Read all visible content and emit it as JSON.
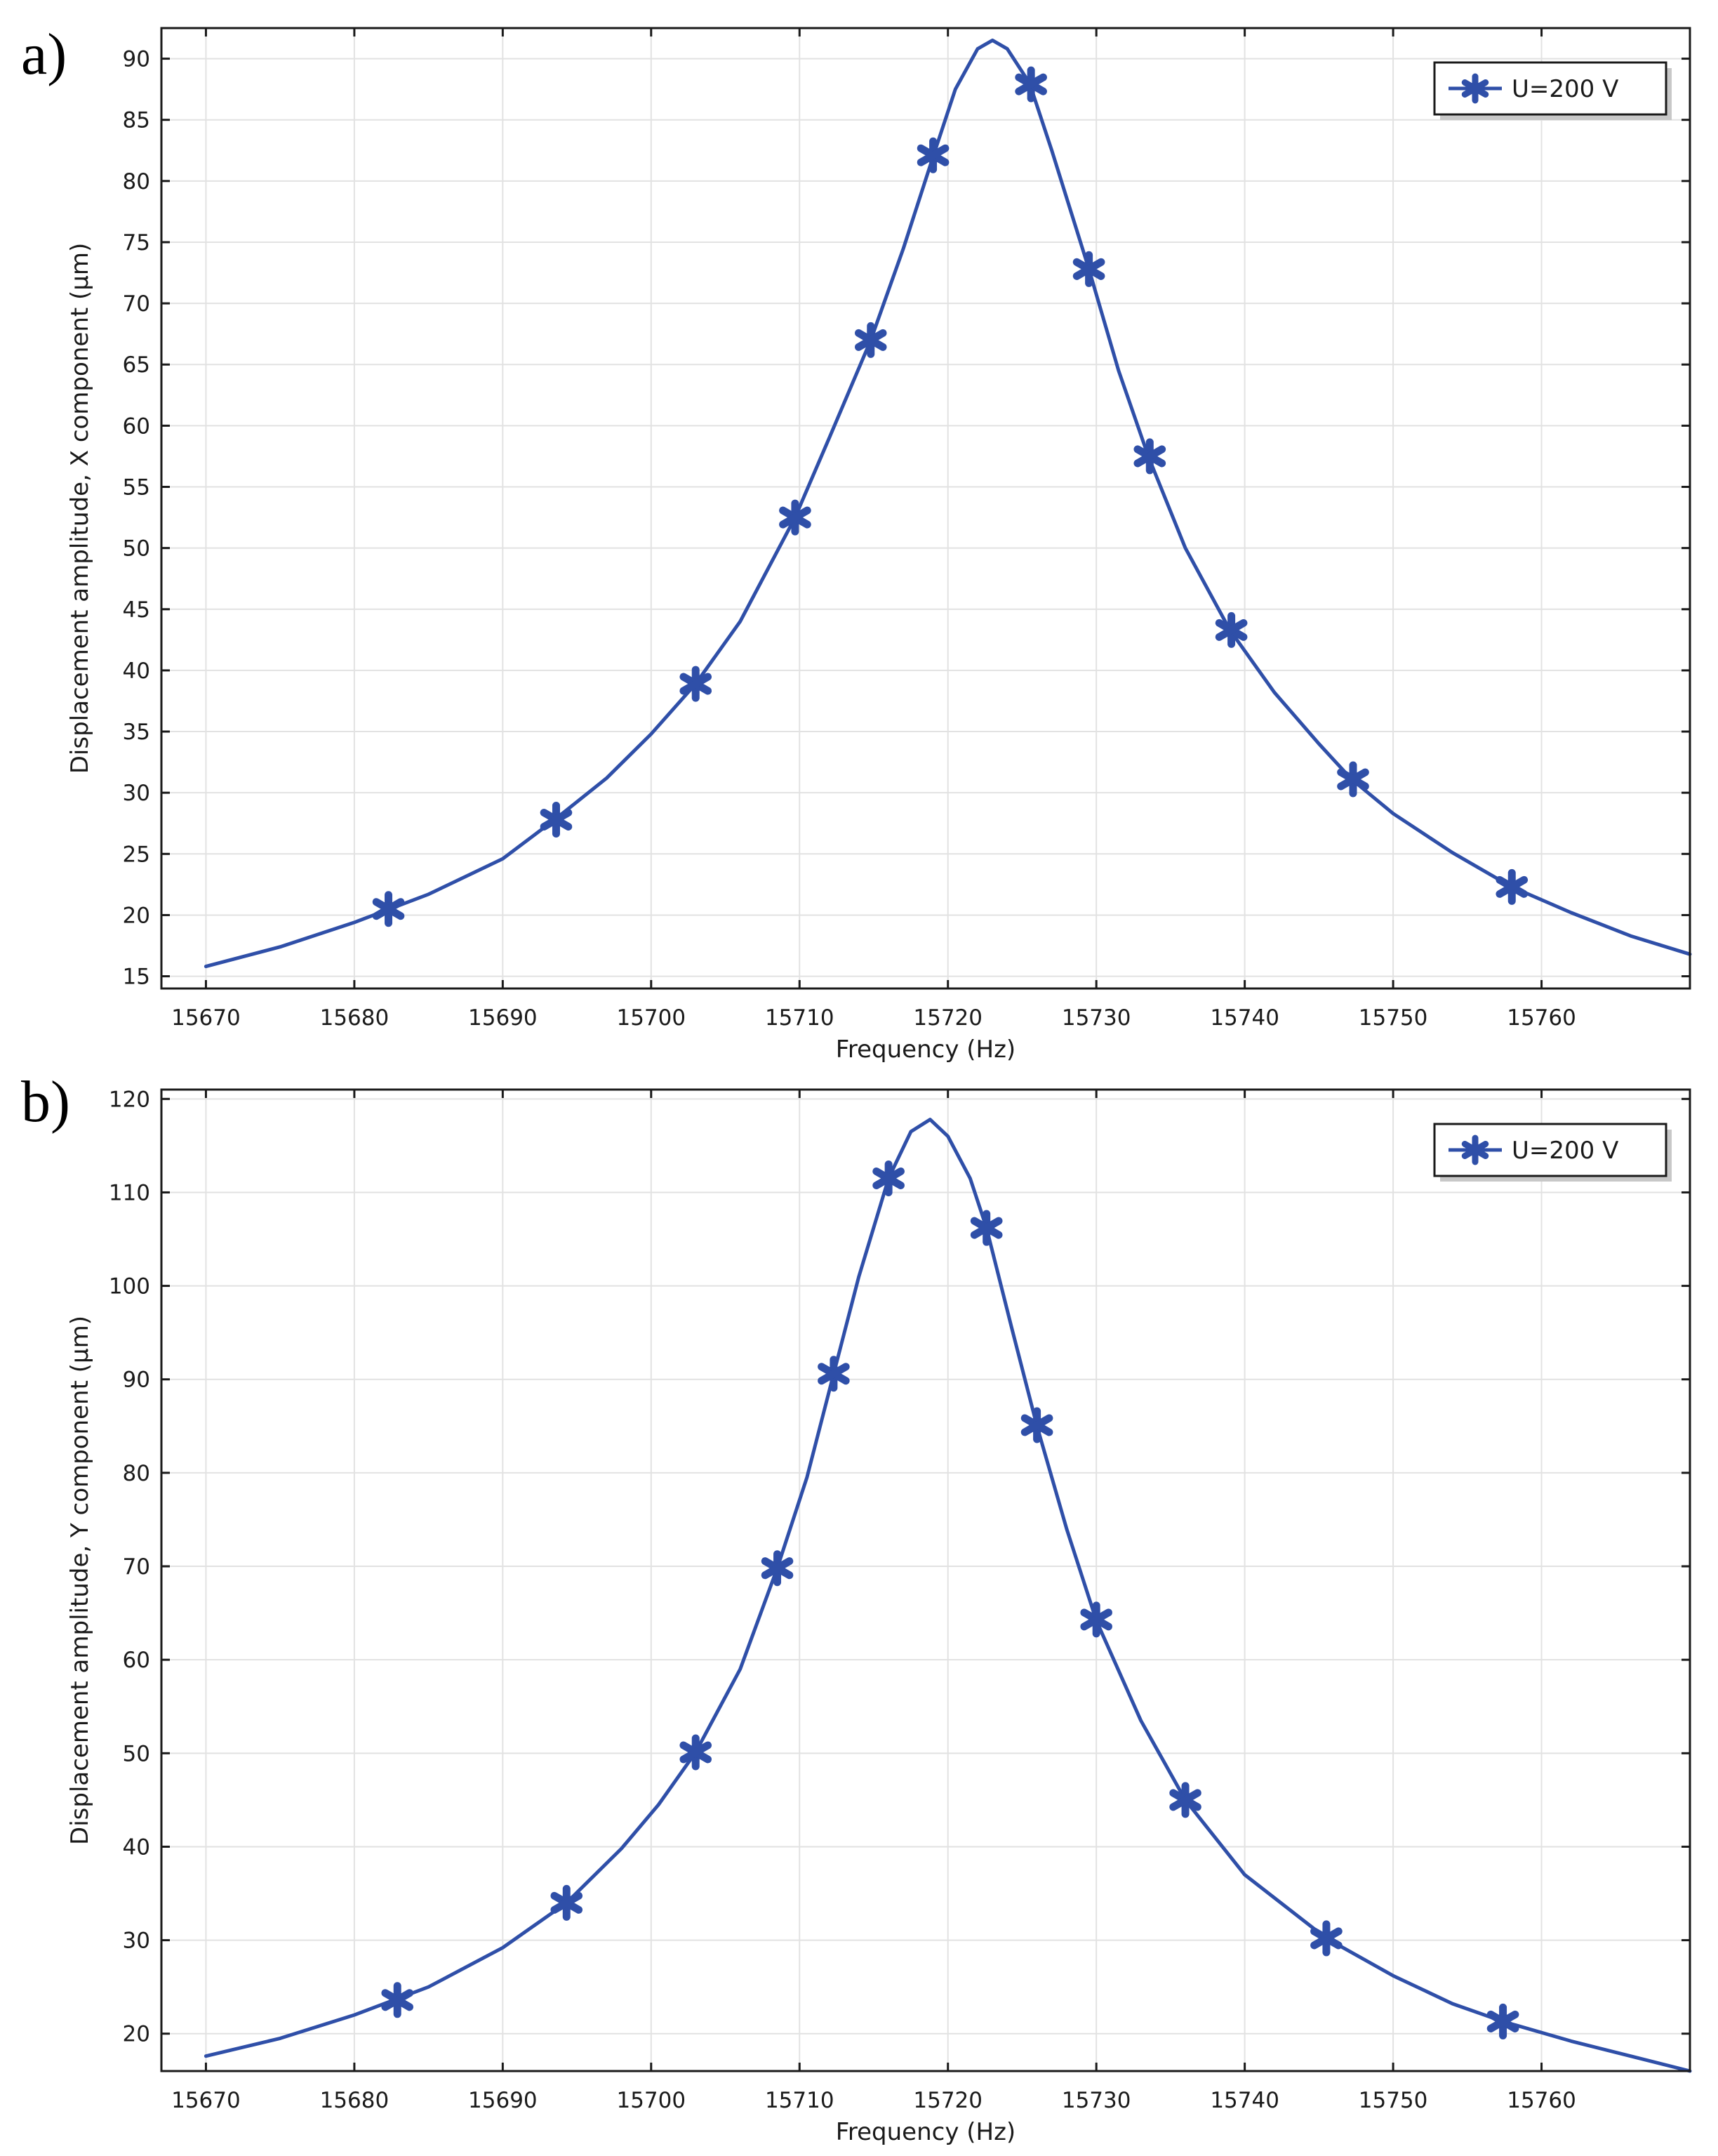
{
  "colors": {
    "series": "#2f4fa8",
    "grid": "#e2e2e2",
    "axis": "#1a1a1a",
    "legend_shadow": "#c8c8c8"
  },
  "chart_data": [
    {
      "panel_label": "a)",
      "type": "line",
      "title": "",
      "xlabel": "Frequency (Hz)",
      "ylabel": "Displacement amplitude, X component (µm)",
      "xlim": [
        15667,
        15770
      ],
      "ylim": [
        14,
        92.5
      ],
      "grid": true,
      "legend_position": "top-right",
      "x_ticks": [
        15670,
        15680,
        15690,
        15700,
        15710,
        15720,
        15730,
        15740,
        15750,
        15760
      ],
      "x_tick_labels": [
        "15670",
        "15680",
        "15690",
        "15700",
        "15710",
        "15720",
        "15730",
        "15740",
        "15750",
        "15760"
      ],
      "y_ticks": [
        15,
        20,
        25,
        30,
        35,
        40,
        45,
        50,
        55,
        60,
        65,
        70,
        75,
        80,
        85,
        90
      ],
      "y_tick_labels": [
        "15",
        "20",
        "25",
        "30",
        "35",
        "40",
        "45",
        "50",
        "55",
        "60",
        "65",
        "70",
        "75",
        "80",
        "85",
        "90"
      ],
      "series": [
        {
          "name": "U=200 V",
          "marker": "asterisk",
          "line": [
            [
              15670,
              15.8
            ],
            [
              15675,
              17.4
            ],
            [
              15680,
              19.4
            ],
            [
              15685,
              21.7
            ],
            [
              15690,
              24.6
            ],
            [
              15693.5,
              27.8
            ],
            [
              15697,
              31.2
            ],
            [
              15700,
              34.8
            ],
            [
              15703,
              38.9
            ],
            [
              15706,
              44.0
            ],
            [
              15709.7,
              52.5
            ],
            [
              15712,
              59.0
            ],
            [
              15714.8,
              67.0
            ],
            [
              15717,
              74.5
            ],
            [
              15719,
              82.0
            ],
            [
              15720.5,
              87.5
            ],
            [
              15722,
              90.8
            ],
            [
              15723,
              91.5
            ],
            [
              15724,
              90.8
            ],
            [
              15725.5,
              88.0
            ],
            [
              15727,
              82.5
            ],
            [
              15729.5,
              72.8
            ],
            [
              15731.5,
              64.5
            ],
            [
              15733.5,
              57.5
            ],
            [
              15736,
              50.0
            ],
            [
              15739,
              43.3
            ],
            [
              15742,
              38.2
            ],
            [
              15745,
              34.0
            ],
            [
              15747.2,
              31.1
            ],
            [
              15750,
              28.3
            ],
            [
              15754,
              25.1
            ],
            [
              15758,
              22.3
            ],
            [
              15762,
              20.2
            ],
            [
              15766,
              18.3
            ],
            [
              15770,
              16.8
            ]
          ],
          "markers": [
            [
              15682.3,
              20.5
            ],
            [
              15693.6,
              27.8
            ],
            [
              15703.0,
              38.9
            ],
            [
              15709.7,
              52.5
            ],
            [
              15714.8,
              67.0
            ],
            [
              15719.0,
              82.1
            ],
            [
              15725.6,
              87.9
            ],
            [
              15729.5,
              72.8
            ],
            [
              15733.6,
              57.5
            ],
            [
              15739.1,
              43.3
            ],
            [
              15747.3,
              31.1
            ],
            [
              15758.0,
              22.3
            ]
          ]
        }
      ]
    },
    {
      "panel_label": "b)",
      "type": "line",
      "title": "",
      "xlabel": "Frequency (Hz)",
      "ylabel": "Displacement amplitude, Y component (µm)",
      "xlim": [
        15667,
        15770
      ],
      "ylim": [
        16,
        121
      ],
      "grid": true,
      "legend_position": "top-right",
      "x_ticks": [
        15670,
        15680,
        15690,
        15700,
        15710,
        15720,
        15730,
        15740,
        15750,
        15760
      ],
      "x_tick_labels": [
        "15670",
        "15680",
        "15690",
        "15700",
        "15710",
        "15720",
        "15730",
        "15740",
        "15750",
        "15760"
      ],
      "y_ticks": [
        20,
        30,
        40,
        50,
        60,
        70,
        80,
        90,
        100,
        110,
        120
      ],
      "y_tick_labels": [
        "20",
        "30",
        "40",
        "50",
        "60",
        "70",
        "80",
        "90",
        "100",
        "110",
        "120"
      ],
      "series": [
        {
          "name": "U=200 V",
          "marker": "asterisk",
          "line": [
            [
              15670,
              17.6
            ],
            [
              15675,
              19.5
            ],
            [
              15680,
              22.0
            ],
            [
              15685,
              25.0
            ],
            [
              15690,
              29.2
            ],
            [
              15694.3,
              34.0
            ],
            [
              15698,
              39.8
            ],
            [
              15700.5,
              44.5
            ],
            [
              15703,
              50.1
            ],
            [
              15706,
              59.0
            ],
            [
              15708.5,
              69.8
            ],
            [
              15710.5,
              79.5
            ],
            [
              15712.3,
              90.6
            ],
            [
              15714,
              101.0
            ],
            [
              15716,
              111.5
            ],
            [
              15717.5,
              116.5
            ],
            [
              15718.8,
              117.8
            ],
            [
              15720,
              116.0
            ],
            [
              15721.5,
              111.5
            ],
            [
              15722.6,
              106.2
            ],
            [
              15724.3,
              95.5
            ],
            [
              15726,
              85.0
            ],
            [
              15728,
              74.0
            ],
            [
              15730,
              64.2
            ],
            [
              15733,
              53.5
            ],
            [
              15736,
              45.0
            ],
            [
              15740,
              37.0
            ],
            [
              15745.5,
              30.2
            ],
            [
              15750,
              26.2
            ],
            [
              15754,
              23.2
            ],
            [
              15757.4,
              21.3
            ],
            [
              15762,
              19.2
            ],
            [
              15766,
              17.6
            ],
            [
              15770,
              16.0
            ]
          ],
          "markers": [
            [
              15682.9,
              23.6
            ],
            [
              15694.3,
              34.0
            ],
            [
              15703.0,
              50.1
            ],
            [
              15708.5,
              69.8
            ],
            [
              15712.3,
              90.6
            ],
            [
              15716.0,
              111.5
            ],
            [
              15722.6,
              106.2
            ],
            [
              15726.0,
              85.1
            ],
            [
              15730.0,
              64.3
            ],
            [
              15736.0,
              45.0
            ],
            [
              15745.5,
              30.2
            ],
            [
              15757.4,
              21.3
            ]
          ]
        }
      ]
    }
  ]
}
